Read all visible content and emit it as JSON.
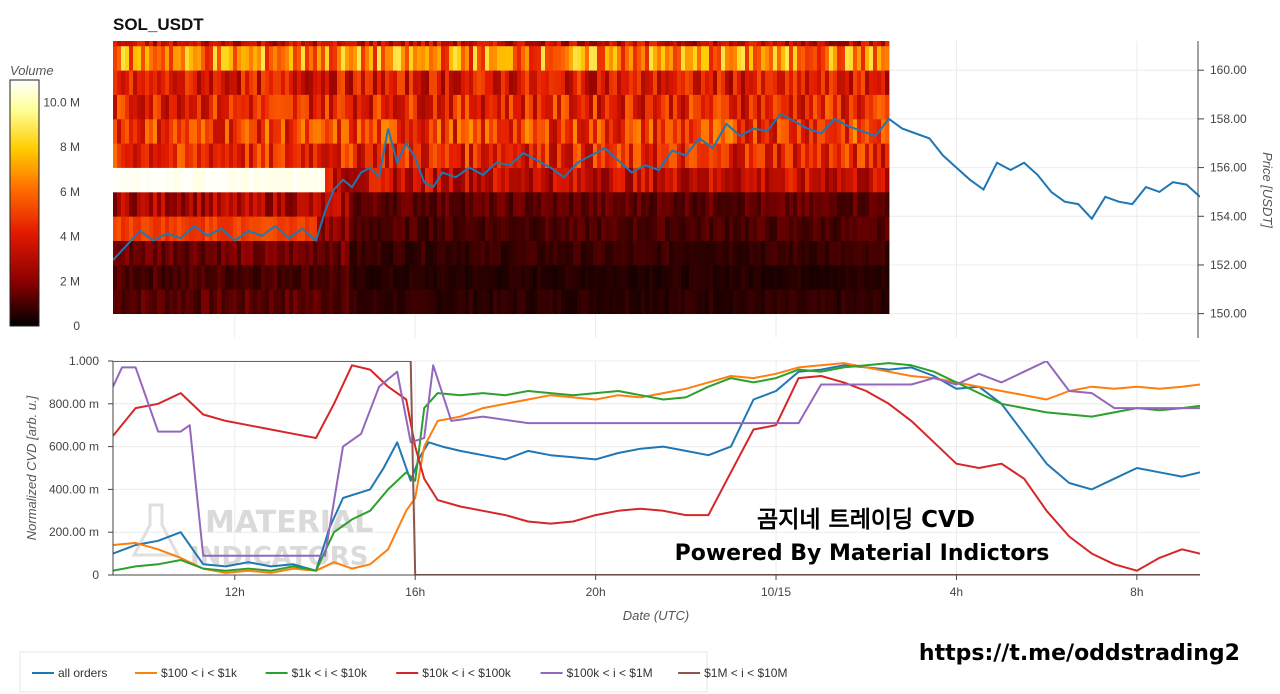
{
  "chart_data": [
    {
      "type": "heatmap",
      "title": "SOL_USDT",
      "colorbar_label": "Volume",
      "colorbar_ticks": [
        "0",
        "2 M",
        "4 M",
        "6 M",
        "8 M",
        "10.0 M"
      ],
      "colorbar_values": [
        0,
        2000000,
        4000000,
        6000000,
        8000000,
        10000000
      ],
      "volume_range": [
        0,
        11000000
      ],
      "colorscale": [
        "#000000",
        "#8b0000",
        "#e31a00",
        "#ff6a00",
        "#ffcc00",
        "#ffff99",
        "#ffffff"
      ],
      "price_bins": [
        150,
        151,
        152,
        153,
        154,
        155,
        156,
        157,
        158,
        159,
        160,
        161
      ],
      "bin_volume_M": [
        1.2,
        1.0,
        1.5,
        2.0,
        2.5,
        3.0,
        4.0,
        4.5,
        4.0,
        3.5,
        6.0,
        3.0
      ],
      "notes": "Heatmap spans from start to ~2:30 UTC on 10/15"
    },
    {
      "type": "line",
      "ylabel": "Price [USDT]",
      "yticks": [
        "150.00",
        "152.00",
        "154.00",
        "156.00",
        "158.00",
        "160.00"
      ],
      "ylim": [
        149,
        161.2
      ],
      "x_start_hours": 9.3,
      "x_end_hours": 33.4,
      "series": [
        {
          "color": "#1f77b4",
          "x": [
            9.3,
            9.6,
            9.9,
            10.2,
            10.5,
            10.8,
            11.1,
            11.4,
            11.7,
            12.0,
            12.3,
            12.6,
            12.9,
            13.2,
            13.5,
            13.8,
            14.0,
            14.2,
            14.4,
            14.6,
            14.8,
            15.0,
            15.2,
            15.4,
            15.6,
            15.8,
            16.0,
            16.2,
            16.4,
            16.6,
            16.9,
            17.2,
            17.5,
            17.8,
            18.1,
            18.4,
            18.7,
            19.0,
            19.3,
            19.6,
            19.9,
            20.2,
            20.5,
            20.8,
            21.1,
            21.4,
            21.7,
            22.0,
            22.3,
            22.6,
            22.9,
            23.2,
            23.5,
            23.8,
            24.1,
            24.4,
            24.7,
            25.0,
            25.3,
            25.6,
            25.9,
            26.2,
            26.5,
            26.8,
            27.1,
            27.4,
            27.7,
            28.0,
            28.3,
            28.6,
            28.9,
            29.2,
            29.5,
            29.8,
            30.1,
            30.4,
            30.7,
            31.0,
            31.3,
            31.6,
            31.9,
            32.2,
            32.5,
            32.8,
            33.1,
            33.4
          ],
          "values": [
            152.2,
            152.8,
            153.4,
            153.0,
            153.3,
            153.1,
            153.6,
            153.2,
            153.5,
            153.0,
            153.4,
            153.2,
            153.6,
            153.1,
            153.5,
            153.0,
            154.2,
            155.1,
            155.5,
            155.2,
            155.8,
            156.0,
            155.6,
            157.6,
            156.2,
            157.0,
            156.4,
            155.4,
            155.2,
            155.8,
            155.6,
            156.0,
            155.7,
            156.2,
            156.1,
            156.6,
            156.3,
            156.0,
            155.6,
            156.2,
            156.5,
            156.8,
            156.3,
            155.8,
            156.1,
            155.9,
            156.7,
            156.5,
            157.2,
            156.8,
            157.8,
            157.3,
            157.6,
            157.5,
            158.2,
            157.9,
            157.6,
            157.4,
            158.0,
            157.7,
            157.5,
            157.3,
            158.0,
            157.6,
            157.4,
            157.2,
            156.5,
            156.0,
            155.5,
            155.1,
            156.2,
            155.9,
            156.2,
            155.7,
            155.0,
            154.6,
            154.5,
            153.9,
            154.8,
            154.6,
            154.5,
            155.2,
            155.0,
            155.4,
            155.3,
            154.8
          ]
        }
      ]
    },
    {
      "type": "line",
      "xlabel": "Date (UTC)",
      "ylabel": "Normalized CVD [arb. u.]",
      "xticks": [
        "12h",
        "16h",
        "20h",
        "10/15",
        "4h",
        "8h"
      ],
      "xtick_hours": [
        12,
        16,
        20,
        24,
        28,
        32
      ],
      "yticks": [
        "0",
        "200.00 m",
        "400.00 m",
        "600.00 m",
        "800.00 m",
        "1.000"
      ],
      "ylim": [
        0,
        1.0
      ],
      "x_start_hours": 9.3,
      "x_end_hours": 33.4,
      "legend_position": "bottom-left",
      "series": [
        {
          "name": "all orders",
          "color": "#1f77b4",
          "x": [
            9.3,
            9.8,
            10.3,
            10.8,
            11.3,
            11.8,
            12.3,
            12.8,
            13.3,
            13.8,
            14.1,
            14.4,
            14.7,
            15.0,
            15.3,
            15.6,
            15.9,
            16.1,
            16.3,
            16.6,
            17.0,
            17.5,
            18.0,
            18.5,
            19.0,
            19.5,
            20.0,
            20.5,
            21.0,
            21.5,
            22.0,
            22.5,
            23.0,
            23.5,
            24.0,
            24.5,
            25.0,
            25.5,
            26.0,
            26.5,
            27.0,
            27.5,
            28.0,
            28.5,
            29.0,
            29.5,
            30.0,
            30.5,
            31.0,
            31.5,
            32.0,
            32.5,
            33.0,
            33.4
          ],
          "values": [
            0.1,
            0.14,
            0.16,
            0.2,
            0.05,
            0.04,
            0.06,
            0.04,
            0.05,
            0.02,
            0.22,
            0.36,
            0.38,
            0.4,
            0.5,
            0.62,
            0.44,
            0.55,
            0.62,
            0.6,
            0.58,
            0.56,
            0.54,
            0.58,
            0.56,
            0.55,
            0.54,
            0.57,
            0.59,
            0.6,
            0.58,
            0.56,
            0.6,
            0.82,
            0.86,
            0.95,
            0.96,
            0.98,
            0.97,
            0.96,
            0.97,
            0.93,
            0.87,
            0.88,
            0.8,
            0.66,
            0.52,
            0.43,
            0.4,
            0.45,
            0.5,
            0.48,
            0.46,
            0.48
          ]
        },
        {
          "name": "$100 < i < $1k",
          "color": "#ff7f0e",
          "x": [
            9.3,
            9.8,
            10.3,
            10.8,
            11.3,
            11.8,
            12.3,
            12.8,
            13.3,
            13.8,
            14.2,
            14.6,
            15.0,
            15.4,
            15.8,
            16.0,
            16.2,
            16.5,
            17.0,
            17.5,
            18.0,
            18.5,
            19.0,
            19.5,
            20.0,
            20.5,
            21.0,
            21.5,
            22.0,
            22.5,
            23.0,
            23.5,
            24.0,
            24.5,
            25.0,
            25.5,
            26.0,
            26.5,
            27.0,
            27.5,
            28.0,
            28.5,
            29.0,
            29.5,
            30.0,
            30.5,
            31.0,
            31.5,
            32.0,
            32.5,
            33.0,
            33.4
          ],
          "values": [
            0.14,
            0.15,
            0.12,
            0.08,
            0.03,
            0.01,
            0.02,
            0.01,
            0.03,
            0.02,
            0.06,
            0.03,
            0.05,
            0.12,
            0.3,
            0.36,
            0.6,
            0.72,
            0.74,
            0.78,
            0.8,
            0.82,
            0.84,
            0.83,
            0.82,
            0.84,
            0.83,
            0.85,
            0.87,
            0.9,
            0.93,
            0.92,
            0.94,
            0.97,
            0.98,
            0.99,
            0.97,
            0.95,
            0.93,
            0.92,
            0.9,
            0.88,
            0.86,
            0.84,
            0.82,
            0.86,
            0.88,
            0.87,
            0.88,
            0.87,
            0.88,
            0.89
          ]
        },
        {
          "name": "$1k < i < $10k",
          "color": "#2ca02c",
          "x": [
            9.3,
            9.8,
            10.3,
            10.8,
            11.3,
            11.8,
            12.3,
            12.8,
            13.3,
            13.8,
            14.2,
            14.6,
            15.0,
            15.4,
            15.8,
            16.0,
            16.2,
            16.5,
            17.0,
            17.5,
            18.0,
            18.5,
            19.0,
            19.5,
            20.0,
            20.5,
            21.0,
            21.5,
            22.0,
            22.5,
            23.0,
            23.5,
            24.0,
            24.5,
            25.0,
            25.5,
            26.0,
            26.5,
            27.0,
            27.5,
            28.0,
            28.5,
            29.0,
            29.5,
            30.0,
            30.5,
            31.0,
            31.5,
            32.0,
            32.5,
            33.0,
            33.4
          ],
          "values": [
            0.02,
            0.04,
            0.05,
            0.07,
            0.03,
            0.02,
            0.03,
            0.02,
            0.04,
            0.02,
            0.2,
            0.26,
            0.3,
            0.4,
            0.48,
            0.44,
            0.78,
            0.85,
            0.84,
            0.85,
            0.84,
            0.86,
            0.85,
            0.84,
            0.85,
            0.86,
            0.84,
            0.82,
            0.83,
            0.88,
            0.92,
            0.9,
            0.92,
            0.96,
            0.95,
            0.97,
            0.98,
            0.99,
            0.98,
            0.95,
            0.9,
            0.85,
            0.8,
            0.78,
            0.76,
            0.75,
            0.74,
            0.76,
            0.78,
            0.77,
            0.78,
            0.79
          ]
        },
        {
          "name": "$10k < i < $100k",
          "color": "#d62728",
          "x": [
            9.3,
            9.8,
            10.3,
            10.8,
            11.3,
            11.8,
            12.3,
            12.8,
            13.3,
            13.8,
            14.2,
            14.6,
            15.0,
            15.4,
            15.8,
            16.0,
            16.2,
            16.5,
            17.0,
            17.5,
            18.0,
            18.5,
            19.0,
            19.5,
            20.0,
            20.5,
            21.0,
            21.5,
            22.0,
            22.5,
            23.0,
            23.5,
            24.0,
            24.5,
            25.0,
            25.5,
            26.0,
            26.5,
            27.0,
            27.5,
            28.0,
            28.5,
            29.0,
            29.5,
            30.0,
            30.5,
            31.0,
            31.5,
            32.0,
            32.5,
            33.0,
            33.4
          ],
          "values": [
            0.65,
            0.78,
            0.8,
            0.85,
            0.75,
            0.72,
            0.7,
            0.68,
            0.66,
            0.64,
            0.8,
            0.98,
            0.96,
            0.88,
            0.82,
            0.6,
            0.45,
            0.35,
            0.32,
            0.3,
            0.28,
            0.25,
            0.24,
            0.25,
            0.28,
            0.3,
            0.31,
            0.3,
            0.28,
            0.28,
            0.48,
            0.68,
            0.7,
            0.92,
            0.93,
            0.9,
            0.86,
            0.8,
            0.72,
            0.62,
            0.52,
            0.5,
            0.52,
            0.45,
            0.3,
            0.18,
            0.1,
            0.05,
            0.02,
            0.08,
            0.12,
            0.1
          ]
        },
        {
          "name": "$100k < i < $1M",
          "color": "#9467bd",
          "x": [
            9.3,
            9.5,
            9.8,
            10.3,
            10.8,
            11.0,
            11.3,
            12.0,
            13.0,
            14.0,
            14.4,
            14.8,
            15.2,
            15.6,
            15.9,
            16.2,
            16.4,
            16.8,
            17.5,
            18.5,
            19.5,
            20.5,
            21.5,
            22.5,
            23.5,
            24.0,
            24.5,
            25.0,
            25.5,
            26.0,
            26.5,
            27.0,
            27.5,
            28.0,
            28.5,
            29.0,
            29.5,
            30.0,
            30.5,
            31.0,
            31.5,
            32.0,
            32.5,
            33.0,
            33.4
          ],
          "values": [
            0.88,
            0.97,
            0.97,
            0.67,
            0.67,
            0.7,
            0.09,
            0.09,
            0.09,
            0.09,
            0.6,
            0.66,
            0.88,
            0.95,
            0.62,
            0.64,
            0.98,
            0.72,
            0.74,
            0.71,
            0.71,
            0.71,
            0.71,
            0.71,
            0.71,
            0.71,
            0.71,
            0.89,
            0.89,
            0.89,
            0.89,
            0.89,
            0.92,
            0.89,
            0.94,
            0.9,
            0.95,
            1.0,
            0.86,
            0.85,
            0.78,
            0.78,
            0.78,
            0.78,
            0.78
          ]
        },
        {
          "name": "$1M < i < $10M",
          "color": "#8c564b",
          "x": [
            9.3,
            15.9,
            15.95,
            16.0,
            16.05,
            33.4
          ],
          "values": [
            1.0,
            1.0,
            0.5,
            0.0,
            0.0,
            0.0
          ]
        }
      ]
    }
  ],
  "overlay": {
    "title_ko": "곰지네 트레이딩 CVD",
    "powered_by": "Powered By Material Indictors",
    "url": "https://t.me/oddstrading2"
  }
}
